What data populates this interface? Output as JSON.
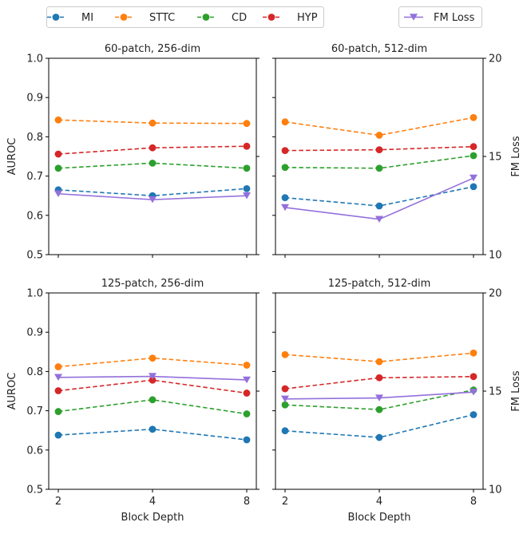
{
  "legend": {
    "entries": [
      {
        "label": "MI",
        "color": "#1f77b4",
        "style": "dashed",
        "marker": "circle"
      },
      {
        "label": "STTC",
        "color": "#ff7f0e",
        "style": "dashed",
        "marker": "circle"
      },
      {
        "label": "CD",
        "color": "#2ca02c",
        "style": "dashed",
        "marker": "circle"
      },
      {
        "label": "HYP",
        "color": "#d62728",
        "style": "dashed",
        "marker": "circle"
      },
      {
        "label": "FM Loss",
        "color": "#9370db",
        "style": "solid",
        "marker": "triangle-down"
      }
    ]
  },
  "chart_data": [
    {
      "type": "line",
      "title": "60-patch, 256-dim",
      "xlabel": "",
      "ylabel": "AUROC",
      "y2label": "",
      "categories": [
        "2",
        "4",
        "8"
      ],
      "ylim": [
        0.5,
        1.0
      ],
      "y2lim": [
        10,
        20
      ],
      "yticks": [
        "0.5",
        "0.6",
        "0.7",
        "0.8",
        "0.9",
        "1.0"
      ],
      "y2ticks": [],
      "series": [
        {
          "name": "MI",
          "values": [
            0.665,
            0.65,
            0.668
          ]
        },
        {
          "name": "STTC",
          "values": [
            0.843,
            0.835,
            0.834
          ]
        },
        {
          "name": "CD",
          "values": [
            0.72,
            0.733,
            0.72
          ]
        },
        {
          "name": "HYP",
          "values": [
            0.756,
            0.772,
            0.776
          ]
        }
      ],
      "secondary_series": {
        "name": "FM Loss",
        "values": [
          13.1,
          12.8,
          13.0
        ]
      }
    },
    {
      "type": "line",
      "title": "60-patch, 512-dim",
      "xlabel": "",
      "ylabel": "",
      "y2label": "FM Loss",
      "categories": [
        "2",
        "4",
        "8"
      ],
      "ylim": [
        0.5,
        1.0
      ],
      "y2lim": [
        10,
        20
      ],
      "yticks": [],
      "y2ticks": [
        "10",
        "15",
        "20"
      ],
      "series": [
        {
          "name": "MI",
          "values": [
            0.645,
            0.624,
            0.673
          ]
        },
        {
          "name": "STTC",
          "values": [
            0.838,
            0.804,
            0.849
          ]
        },
        {
          "name": "CD",
          "values": [
            0.722,
            0.72,
            0.752
          ]
        },
        {
          "name": "HYP",
          "values": [
            0.765,
            0.767,
            0.775
          ]
        }
      ],
      "secondary_series": {
        "name": "FM Loss",
        "values": [
          12.4,
          11.8,
          13.9
        ]
      }
    },
    {
      "type": "line",
      "title": "125-patch, 256-dim",
      "xlabel": "Block Depth",
      "ylabel": "AUROC",
      "y2label": "",
      "categories": [
        "2",
        "4",
        "8"
      ],
      "ylim": [
        0.5,
        1.0
      ],
      "y2lim": [
        10,
        20
      ],
      "yticks": [
        "0.5",
        "0.6",
        "0.7",
        "0.8",
        "0.9",
        "1.0"
      ],
      "y2ticks": [],
      "series": [
        {
          "name": "MI",
          "values": [
            0.638,
            0.653,
            0.626
          ]
        },
        {
          "name": "STTC",
          "values": [
            0.812,
            0.834,
            0.816
          ]
        },
        {
          "name": "CD",
          "values": [
            0.698,
            0.728,
            0.692
          ]
        },
        {
          "name": "HYP",
          "values": [
            0.751,
            0.778,
            0.745
          ]
        }
      ],
      "secondary_series": {
        "name": "FM Loss",
        "values": [
          15.7,
          15.75,
          15.57
        ]
      }
    },
    {
      "type": "line",
      "title": "125-patch, 512-dim",
      "xlabel": "Block Depth",
      "ylabel": "",
      "y2label": "FM Loss",
      "categories": [
        "2",
        "4",
        "8"
      ],
      "ylim": [
        0.5,
        1.0
      ],
      "y2lim": [
        10,
        20
      ],
      "yticks": [],
      "y2ticks": [
        "10",
        "15",
        "20"
      ],
      "series": [
        {
          "name": "MI",
          "values": [
            0.649,
            0.632,
            0.69
          ]
        },
        {
          "name": "STTC",
          "values": [
            0.843,
            0.825,
            0.847
          ]
        },
        {
          "name": "CD",
          "values": [
            0.715,
            0.703,
            0.753
          ]
        },
        {
          "name": "HYP",
          "values": [
            0.756,
            0.784,
            0.787
          ]
        }
      ],
      "secondary_series": {
        "name": "FM Loss",
        "values": [
          14.6,
          14.65,
          14.95
        ]
      }
    }
  ]
}
